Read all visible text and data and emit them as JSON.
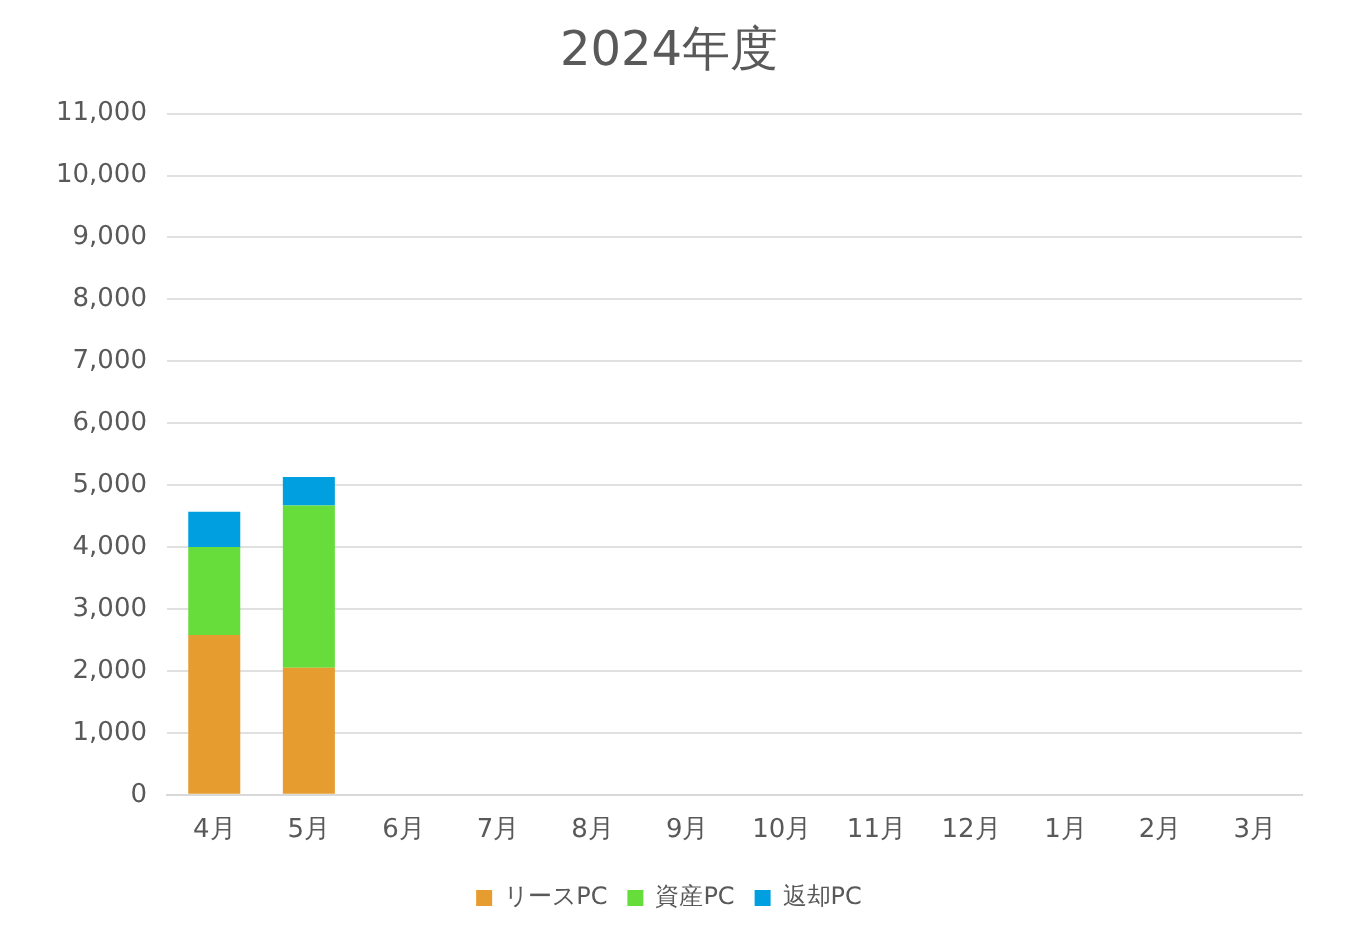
{
  "chart_data": {
    "type": "bar",
    "title": "2024年度",
    "categories": [
      "4月",
      "5月",
      "6月",
      "7月",
      "8月",
      "9月",
      "10月",
      "11月",
      "12月",
      "1月",
      "2月",
      "3月"
    ],
    "stacked": true,
    "series": [
      {
        "name": "リースPC",
        "color": "#e69c2e",
        "values": [
          2580,
          2050,
          null,
          null,
          null,
          null,
          null,
          null,
          null,
          null,
          null,
          null
        ]
      },
      {
        "name": "資産PC",
        "color": "#66dd3a",
        "values": [
          1420,
          2620,
          null,
          null,
          null,
          null,
          null,
          null,
          null,
          null,
          null,
          null
        ]
      },
      {
        "name": "返却PC",
        "color": "#00a0e0",
        "values": [
          570,
          460,
          null,
          null,
          null,
          null,
          null,
          null,
          null,
          null,
          null,
          null
        ]
      }
    ],
    "ylim": [
      0,
      11000
    ],
    "yticks": [
      {
        "value": 0,
        "label": "0"
      },
      {
        "value": 1000,
        "label": "1,000"
      },
      {
        "value": 2000,
        "label": "2,000"
      },
      {
        "value": 3000,
        "label": "3,000"
      },
      {
        "value": 4000,
        "label": "4,000"
      },
      {
        "value": 5000,
        "label": "5,000"
      },
      {
        "value": 6000,
        "label": "6,000"
      },
      {
        "value": 7000,
        "label": "7,000"
      },
      {
        "value": 8000,
        "label": "8,000"
      },
      {
        "value": 9000,
        "label": "9,000"
      },
      {
        "value": 10000,
        "label": "10,000"
      },
      {
        "value": 11000,
        "label": "11,000"
      }
    ],
    "grid": "y",
    "legend": "bottom"
  }
}
